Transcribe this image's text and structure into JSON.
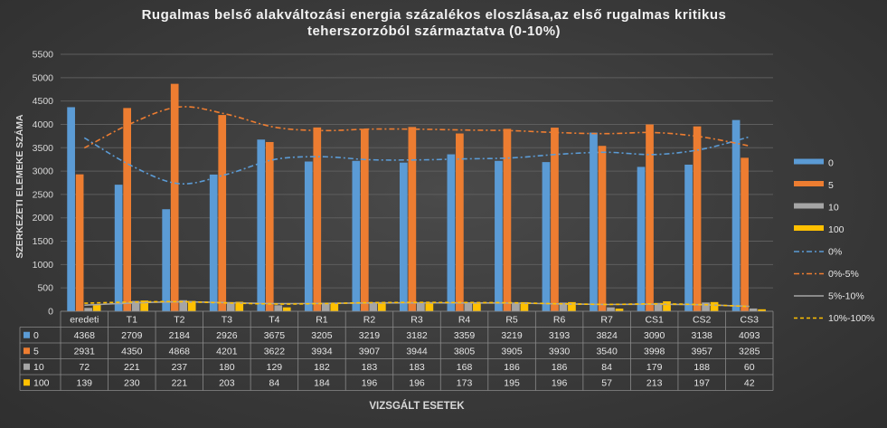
{
  "chart_data": {
    "type": "bar",
    "title_line1": "Rugalmas belső alakváltozási energia százalékos eloszlása,az első rugalmas kritikus",
    "title_line2": "teherszorzóból származtatva  (0-10%)",
    "xlabel": "VIZSGÁLT ESETEK",
    "ylabel": "SZERKEZETI ELEMEKE SZÁMA",
    "ylim": [
      0,
      5500
    ],
    "yticks": [
      "0",
      "500",
      "1000",
      "1500",
      "2000",
      "2500",
      "3000",
      "3500",
      "4000",
      "4500",
      "5000",
      "5500"
    ],
    "grid": true,
    "legend_position": "right",
    "categories": [
      "eredeti",
      "T1",
      "T2",
      "T3",
      "T4",
      "R1",
      "R2",
      "R3",
      "R4",
      "R5",
      "R6",
      "R7",
      "CS1",
      "CS2",
      "CS3"
    ],
    "series": [
      {
        "name": "0",
        "color": "#5b9bd5",
        "values": [
          4368,
          2709,
          2184,
          2926,
          3675,
          3205,
          3219,
          3182,
          3359,
          3219,
          3193,
          3824,
          3090,
          3138,
          4093
        ]
      },
      {
        "name": "5",
        "color": "#ed7d31",
        "values": [
          2931,
          4350,
          4868,
          4201,
          3622,
          3934,
          3907,
          3944,
          3805,
          3905,
          3930,
          3540,
          3998,
          3957,
          3285
        ]
      },
      {
        "name": "10",
        "color": "#a5a5a5",
        "values": [
          72,
          221,
          237,
          180,
          129,
          182,
          183,
          183,
          168,
          186,
          186,
          84,
          179,
          188,
          60
        ]
      },
      {
        "name": "100",
        "color": "#ffc000",
        "values": [
          139,
          230,
          221,
          203,
          84,
          184,
          196,
          196,
          173,
          195,
          196,
          57,
          213,
          197,
          42
        ]
      }
    ],
    "trendlines": [
      {
        "name": "0%",
        "color": "#5b9bd5",
        "style": "dash-dot",
        "series_index": 0
      },
      {
        "name": "0%-5%",
        "color": "#ed7d31",
        "style": "dash-dot",
        "series_index": 1
      },
      {
        "name": "5%-10%",
        "color": "#a5a5a5",
        "style": "solid",
        "series_index": 2
      },
      {
        "name": "10%-100%",
        "color": "#ffc000",
        "style": "dashed",
        "series_index": 3
      }
    ]
  }
}
